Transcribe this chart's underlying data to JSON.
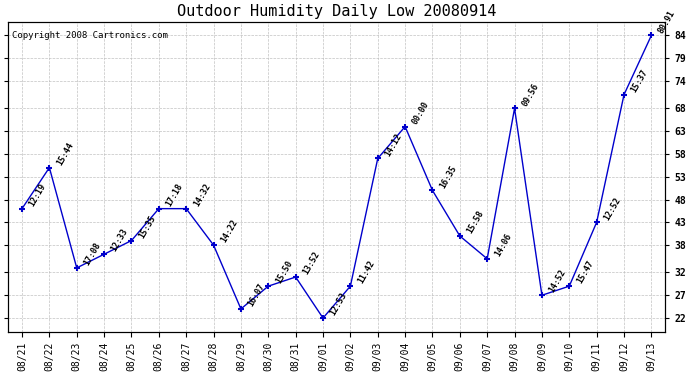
{
  "title": "Outdoor Humidity Daily Low 20080914",
  "copyright": "Copyright 2008 Cartronics.com",
  "x_labels": [
    "08/21",
    "08/22",
    "08/23",
    "08/24",
    "08/25",
    "08/26",
    "08/27",
    "08/28",
    "08/29",
    "08/30",
    "08/31",
    "09/01",
    "09/02",
    "09/03",
    "09/04",
    "09/05",
    "09/06",
    "09/07",
    "09/08",
    "09/09",
    "09/10",
    "09/11",
    "09/12",
    "09/13"
  ],
  "y_values": [
    46,
    55,
    33,
    36,
    39,
    46,
    46,
    38,
    24,
    29,
    31,
    22,
    29,
    57,
    64,
    50,
    40,
    35,
    68,
    27,
    29,
    43,
    71,
    84
  ],
  "point_labels": [
    "12:19",
    "15:44",
    "17:08",
    "12:33",
    "15:35",
    "17:18",
    "14:32",
    "14:22",
    "16:07",
    "15:50",
    "13:52",
    "12:53",
    "11:42",
    "14:12",
    "00:00",
    "16:35",
    "15:58",
    "14:06",
    "09:56",
    "14:52",
    "15:47",
    "12:52",
    "15:37",
    "80:91"
  ],
  "y_ticks": [
    22,
    27,
    32,
    38,
    43,
    48,
    53,
    58,
    63,
    68,
    74,
    79,
    84
  ],
  "y_min": 19,
  "y_max": 87,
  "line_color": "#0000cc",
  "marker_color": "#0000cc",
  "grid_color": "#bbbbbb",
  "background_color": "#ffffff",
  "plot_bg_color": "#ffffff",
  "title_fontsize": 11,
  "label_fontsize": 6,
  "tick_fontsize": 7,
  "copyright_fontsize": 6.5
}
